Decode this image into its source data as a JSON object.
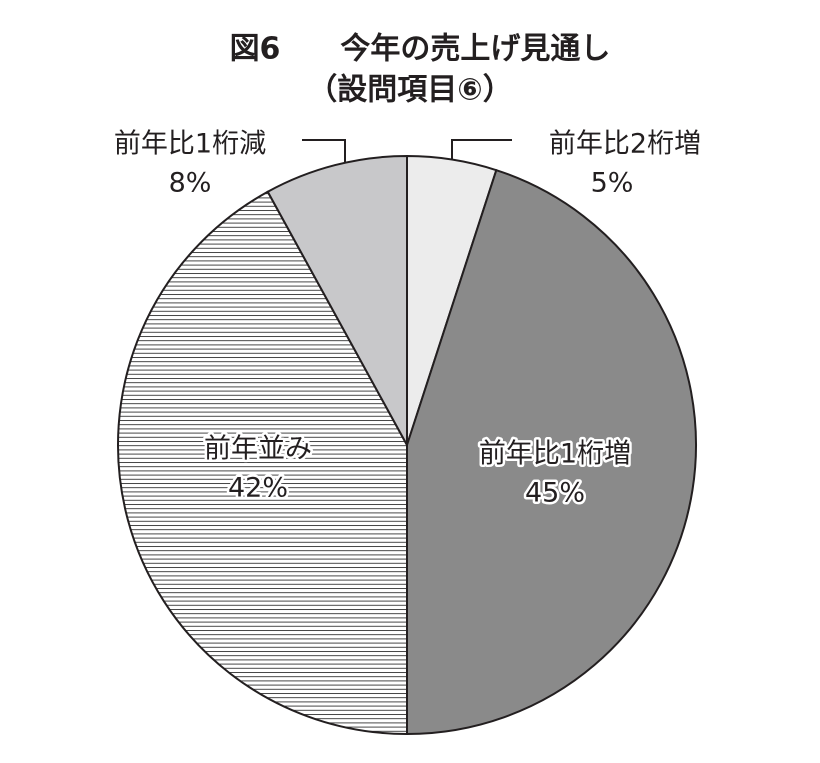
{
  "chart_data": {
    "type": "pie",
    "title": "図6　　今年の売上げ見通し",
    "subtitle": "（設問項目⑥）",
    "categories": [
      "前年比2桁増",
      "前年比1桁増",
      "前年並み",
      "前年比1桁減"
    ],
    "values": [
      5,
      45,
      42,
      8
    ],
    "value_labels": [
      "5%",
      "45%",
      "42%",
      "8%"
    ],
    "colors": [
      "#ececec",
      "#8a8a8a",
      "#ffffff",
      "#c8c8ca"
    ],
    "hatch": [
      false,
      false,
      true,
      false
    ]
  }
}
